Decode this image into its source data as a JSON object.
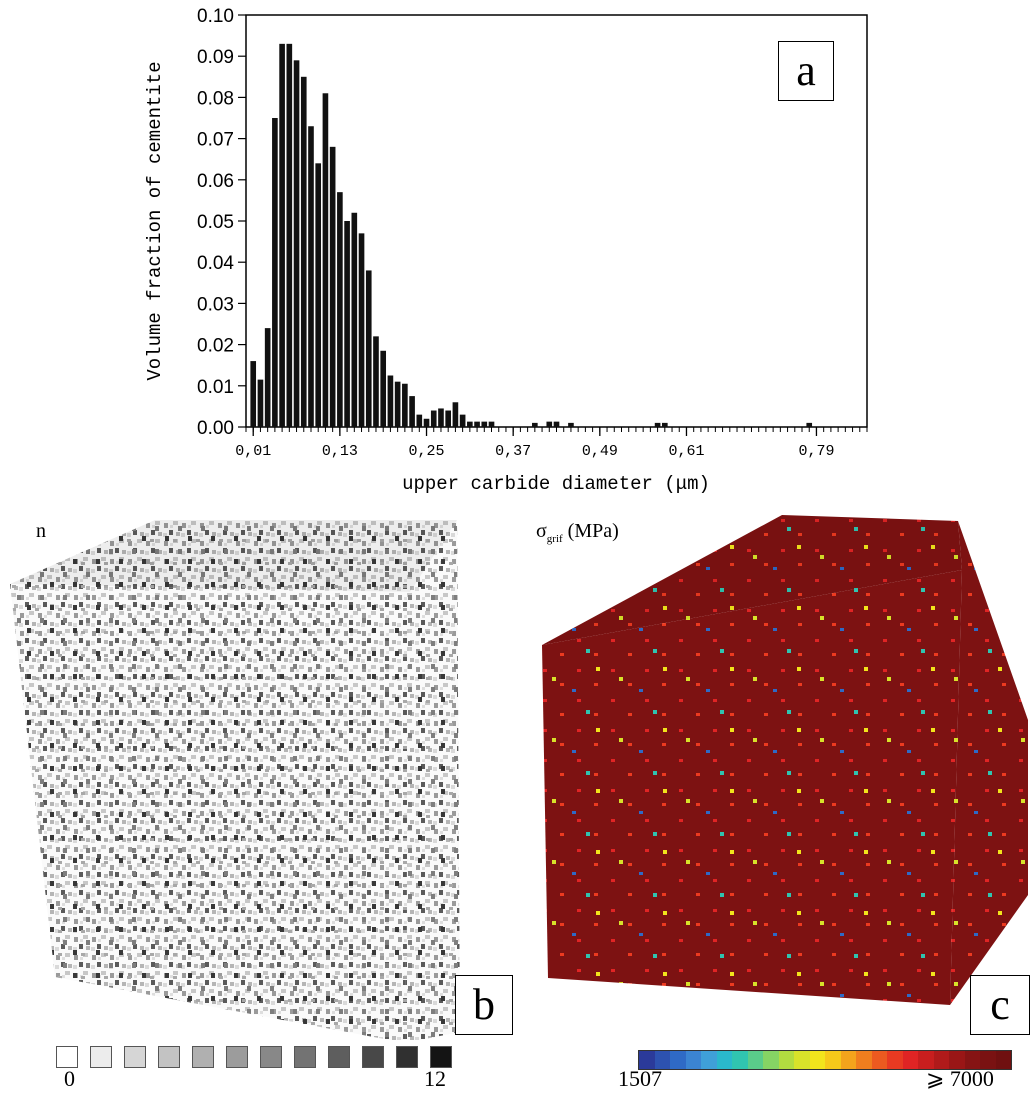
{
  "chart_data": {
    "type": "bar",
    "ylabel": "Volume fraction of cementite",
    "xlabel": "upper carbide diameter (μm)",
    "xlim": [
      0.0,
      0.86
    ],
    "ylim": [
      0.0,
      0.1
    ],
    "bin_width": 0.01,
    "yticks": [
      "0.00",
      "0.01",
      "0.02",
      "0.03",
      "0.04",
      "0.05",
      "0.06",
      "0.07",
      "0.08",
      "0.09",
      "0.10"
    ],
    "xticks": [
      {
        "value": 0.01,
        "label": "0,01"
      },
      {
        "value": 0.13,
        "label": "0,13"
      },
      {
        "value": 0.25,
        "label": "0,25"
      },
      {
        "value": 0.37,
        "label": "0,37"
      },
      {
        "value": 0.49,
        "label": "0,49"
      },
      {
        "value": 0.61,
        "label": "0,61"
      },
      {
        "value": 0.79,
        "label": "0,79"
      }
    ],
    "x": [
      0.01,
      0.02,
      0.03,
      0.04,
      0.05,
      0.06,
      0.07,
      0.08,
      0.09,
      0.1,
      0.11,
      0.12,
      0.13,
      0.14,
      0.15,
      0.16,
      0.17,
      0.18,
      0.19,
      0.2,
      0.21,
      0.22,
      0.23,
      0.24,
      0.25,
      0.26,
      0.27,
      0.28,
      0.29,
      0.3,
      0.31,
      0.32,
      0.33,
      0.34,
      0.4,
      0.42,
      0.43,
      0.45,
      0.57,
      0.58,
      0.78
    ],
    "values": [
      0.016,
      0.0115,
      0.024,
      0.075,
      0.093,
      0.093,
      0.089,
      0.085,
      0.073,
      0.064,
      0.081,
      0.068,
      0.057,
      0.05,
      0.052,
      0.047,
      0.038,
      0.022,
      0.0185,
      0.0125,
      0.011,
      0.0105,
      0.0075,
      0.003,
      0.002,
      0.004,
      0.0045,
      0.004,
      0.006,
      0.003,
      0.0013,
      0.0013,
      0.0013,
      0.0013,
      0.001,
      0.0013,
      0.0013,
      0.001,
      0.001,
      0.001,
      0.001
    ]
  },
  "panels": {
    "a_label": "a",
    "b_label": "b",
    "c_label": "c"
  },
  "cube_b": {
    "field_label": "n",
    "legend_min": "0",
    "legend_max": "12",
    "legend_colors": [
      "#ffffff",
      "#ececec",
      "#d6d6d6",
      "#c3c3c3",
      "#b0b0b0",
      "#9c9c9c",
      "#888888",
      "#737373",
      "#5e5e5e",
      "#484848",
      "#303030",
      "#141414"
    ]
  },
  "cube_c": {
    "field_label_symbol": "σ",
    "field_label_sub": "grif",
    "field_label_unit": " (MPa)",
    "legend_min": "1507",
    "legend_max": "⩾ 7000",
    "base_color": "#7d1212",
    "legend_colors": [
      "#2b3a9a",
      "#2d52b0",
      "#2f6ac6",
      "#3b84d2",
      "#3fa0d8",
      "#2ab8cc",
      "#30c4b0",
      "#5acc8a",
      "#86d464",
      "#b2dc40",
      "#d8e22a",
      "#f2e41c",
      "#f6c81a",
      "#f4a41c",
      "#f07e1e",
      "#ec5a20",
      "#e83a22",
      "#e02424",
      "#c81e1e",
      "#b01a1a",
      "#9a1616",
      "#861414",
      "#7a1212",
      "#701010"
    ]
  }
}
